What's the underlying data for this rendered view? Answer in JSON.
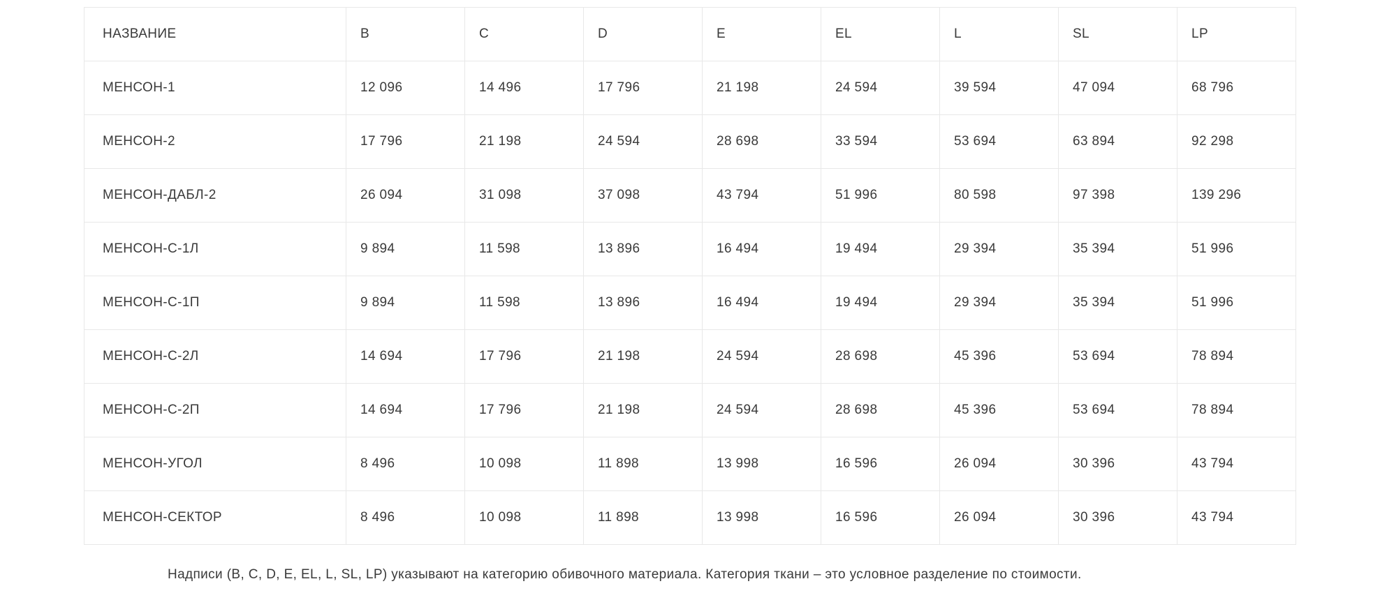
{
  "colors": {
    "text": "#3a3a3a",
    "border": "#e8e8e8",
    "background": "#ffffff"
  },
  "table": {
    "columns": [
      "НАЗВАНИЕ",
      "B",
      "C",
      "D",
      "E",
      "EL",
      "L",
      "SL",
      "LP"
    ],
    "rows": [
      {
        "name": "МЕНСОН-1",
        "values": [
          "12 096",
          "14 496",
          "17 796",
          "21 198",
          "24 594",
          "39 594",
          "47 094",
          "68 796"
        ]
      },
      {
        "name": "МЕНСОН-2",
        "values": [
          "17 796",
          "21 198",
          "24 594",
          "28 698",
          "33 594",
          "53 694",
          "63 894",
          "92 298"
        ]
      },
      {
        "name": "МЕНСОН-ДАБЛ-2",
        "values": [
          "26 094",
          "31 098",
          "37 098",
          "43 794",
          "51 996",
          "80 598",
          "97 398",
          "139 296"
        ]
      },
      {
        "name": "МЕНСОН-С-1Л",
        "values": [
          "9 894",
          "11 598",
          "13 896",
          "16 494",
          "19 494",
          "29 394",
          "35 394",
          "51 996"
        ]
      },
      {
        "name": "МЕНСОН-С-1П",
        "values": [
          "9 894",
          "11 598",
          "13 896",
          "16 494",
          "19 494",
          "29 394",
          "35 394",
          "51 996"
        ]
      },
      {
        "name": "МЕНСОН-С-2Л",
        "values": [
          "14 694",
          "17 796",
          "21 198",
          "24 594",
          "28 698",
          "45 396",
          "53 694",
          "78 894"
        ]
      },
      {
        "name": "МЕНСОН-С-2П",
        "values": [
          "14 694",
          "17 796",
          "21 198",
          "24 594",
          "28 698",
          "45 396",
          "53 694",
          "78 894"
        ]
      },
      {
        "name": "МЕНСОН-УГОЛ",
        "values": [
          "8 496",
          "10 098",
          "11 898",
          "13 998",
          "16 596",
          "26 094",
          "30 396",
          "43 794"
        ]
      },
      {
        "name": "МЕНСОН-СЕКТОР",
        "values": [
          "8 496",
          "10 098",
          "11 898",
          "13 998",
          "16 596",
          "26 094",
          "30 396",
          "43 794"
        ]
      }
    ]
  },
  "footnote": "Надписи (B, C, D, E, EL, L, SL, LP) указывают на категорию обивочного материала. Категория ткани – это условное разделение по стоимости."
}
